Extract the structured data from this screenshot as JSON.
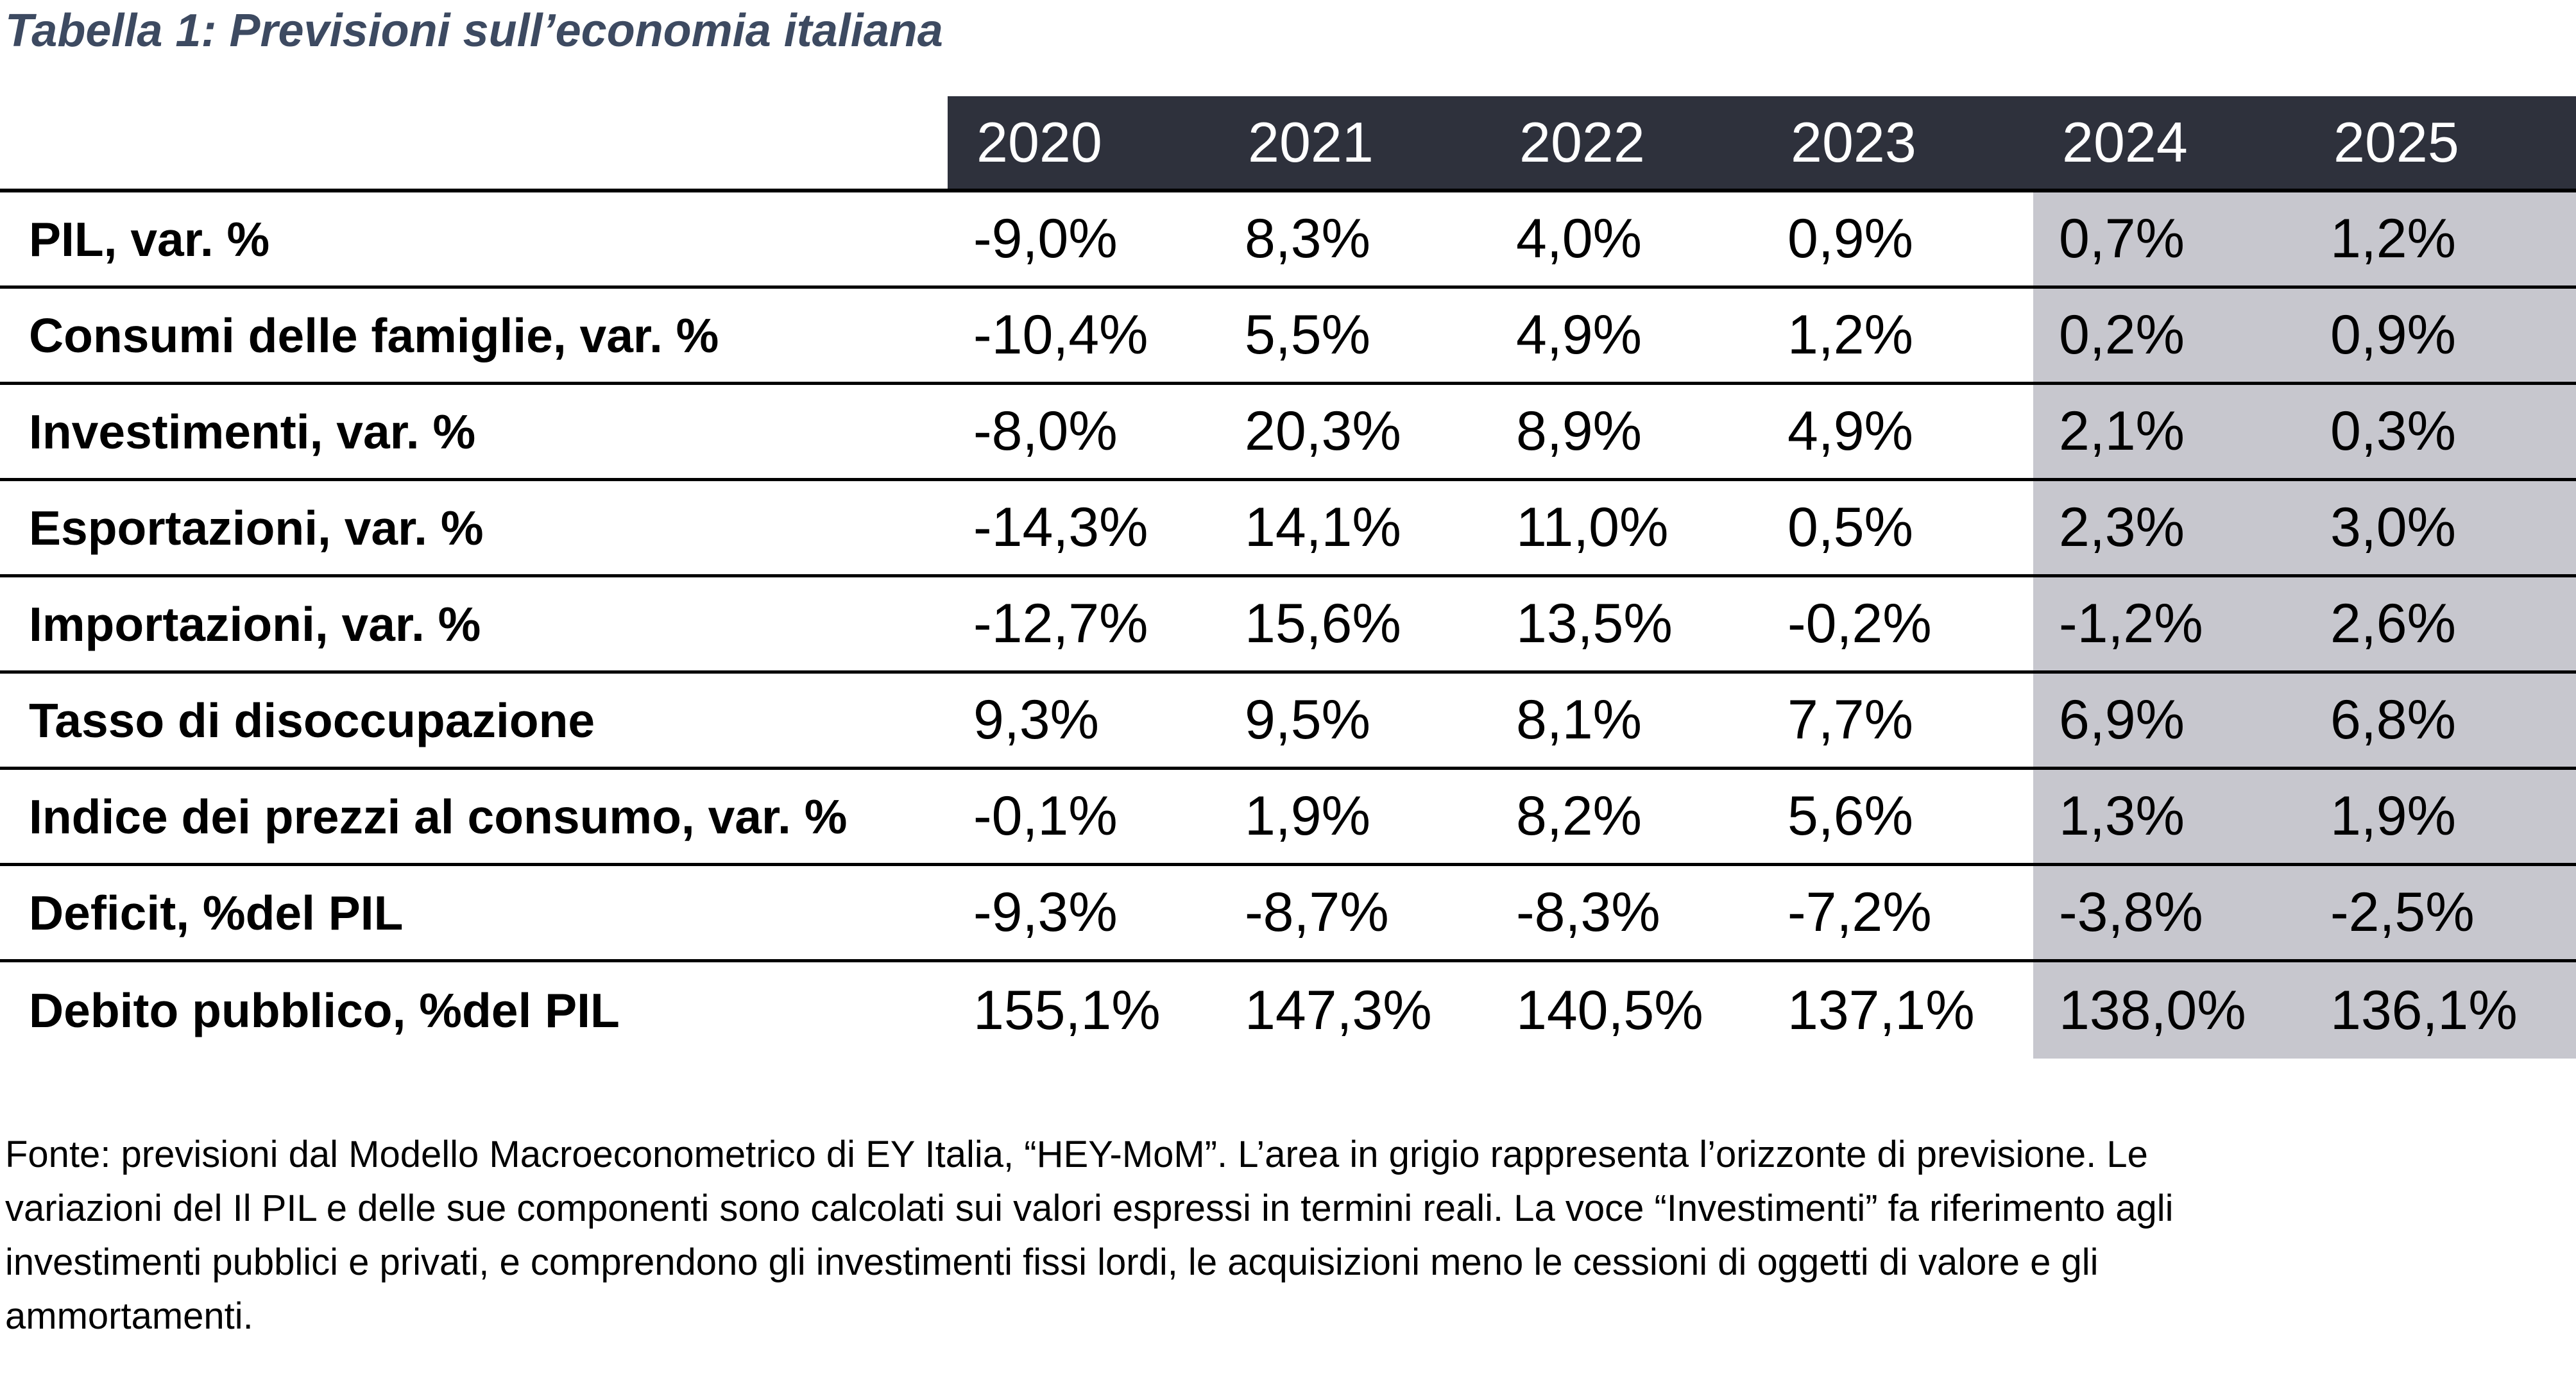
{
  "title": "Tabella 1: Previsioni sull’economia italiana",
  "table": {
    "years": [
      "2020",
      "2021",
      "2022",
      "2023",
      "2024",
      "2025"
    ],
    "forecast_years": [
      "2024",
      "2025"
    ],
    "rows": [
      {
        "label": "PIL, var. %",
        "values": [
          "-9,0%",
          "8,3%",
          "4,0%",
          "0,9%",
          "0,7%",
          "1,2%"
        ]
      },
      {
        "label": "Consumi delle famiglie, var. %",
        "values": [
          "-10,4%",
          "5,5%",
          "4,9%",
          "1,2%",
          "0,2%",
          "0,9%"
        ]
      },
      {
        "label": "Investimenti, var. %",
        "values": [
          "-8,0%",
          "20,3%",
          "8,9%",
          "4,9%",
          "2,1%",
          "0,3%"
        ]
      },
      {
        "label": "Esportazioni, var. %",
        "values": [
          "-14,3%",
          "14,1%",
          "11,0%",
          "0,5%",
          "2,3%",
          "3,0%"
        ]
      },
      {
        "label": "Importazioni, var. %",
        "values": [
          "-12,7%",
          "15,6%",
          "13,5%",
          "-0,2%",
          "-1,2%",
          "2,6%"
        ]
      },
      {
        "label": "Tasso di disoccupazione",
        "values": [
          "9,3%",
          "9,5%",
          "8,1%",
          "7,7%",
          "6,9%",
          "6,8%"
        ]
      },
      {
        "label": "Indice dei prezzi al consumo, var. %",
        "values": [
          "-0,1%",
          "1,9%",
          "8,2%",
          "5,6%",
          "1,3%",
          "1,9%"
        ]
      },
      {
        "label": "Deficit, %del PIL",
        "values": [
          "-9,3%",
          "-8,7%",
          "-8,3%",
          "-7,2%",
          "-3,8%",
          "-2,5%"
        ]
      },
      {
        "label": "Debito pubblico, %del PIL",
        "values": [
          "155,1%",
          "147,3%",
          "140,5%",
          "137,1%",
          "138,0%",
          "136,1%"
        ]
      }
    ]
  },
  "footnote": {
    "lines": [
      "Fonte: previsioni dal Modello Macroeconometrico di EY Italia, “HEY-MoM”. L’area in grigio rappresenta l’orizzonte di previsione. Le",
      "variazioni del Il PIL e delle sue componenti sono calcolati sui valori espressi in termini reali. La voce “Investimenti” fa riferimento agli",
      "investimenti pubblici e privati, e comprendono gli investimenti fissi lordi, le acquisizioni meno le cessioni di oggetti di valore e gli",
      "ammortamenti."
    ]
  },
  "colors": {
    "header_bg": "#2e313c",
    "forecast_bg": "#c7c7ce",
    "title_color": "#3d4a61",
    "border_color": "#000000"
  }
}
